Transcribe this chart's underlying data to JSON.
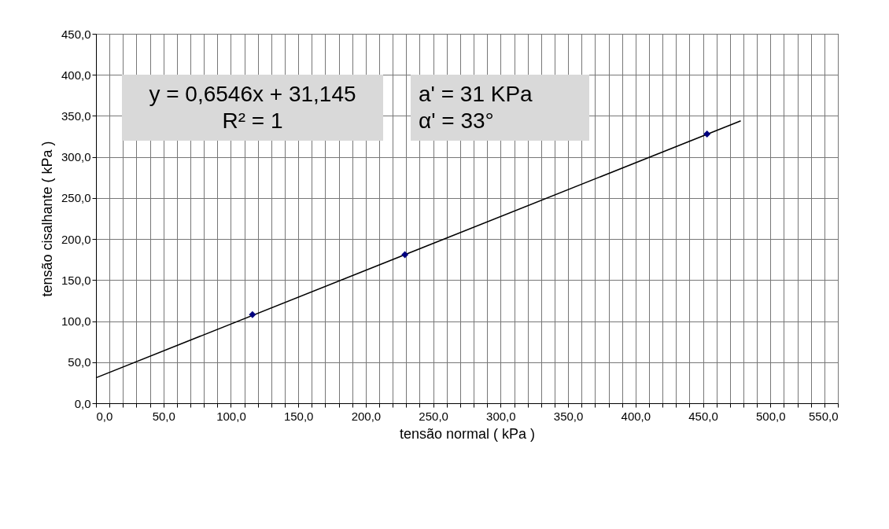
{
  "chart_data": {
    "type": "scatter",
    "xlabel": "tensão normal ( kPa )",
    "ylabel": "tensão cisalhante ( kPa )",
    "x": [
      116,
      229,
      453
    ],
    "series": [
      {
        "color": "#00007f",
        "marker": "diamond",
        "values": [
          108,
          181,
          328
        ]
      },
      {
        "type": "line",
        "color": "#000000",
        "x": [
          0,
          478
        ],
        "values": [
          31,
          344
        ]
      }
    ],
    "xlim": [
      0,
      550
    ],
    "ylim": [
      0,
      450
    ],
    "xticks": [
      {
        "value": 0,
        "label": "0,0"
      },
      {
        "value": 10,
        "label": null
      },
      {
        "value": 20,
        "label": null
      },
      {
        "value": 30,
        "label": null
      },
      {
        "value": 40,
        "label": null
      },
      {
        "value": 50,
        "label": "50,0"
      },
      {
        "value": 60,
        "label": null
      },
      {
        "value": 70,
        "label": null
      },
      {
        "value": 80,
        "label": null
      },
      {
        "value": 90,
        "label": null
      },
      {
        "value": 100,
        "label": "100,0"
      },
      {
        "value": 110,
        "label": null
      },
      {
        "value": 120,
        "label": null
      },
      {
        "value": 130,
        "label": null
      },
      {
        "value": 140,
        "label": null
      },
      {
        "value": 150,
        "label": "150,0"
      },
      {
        "value": 160,
        "label": null
      },
      {
        "value": 170,
        "label": null
      },
      {
        "value": 180,
        "label": null
      },
      {
        "value": 190,
        "label": null
      },
      {
        "value": 200,
        "label": "200,0"
      },
      {
        "value": 210,
        "label": null
      },
      {
        "value": 220,
        "label": null
      },
      {
        "value": 230,
        "label": null
      },
      {
        "value": 240,
        "label": null
      },
      {
        "value": 250,
        "label": "250,0"
      },
      {
        "value": 260,
        "label": null
      },
      {
        "value": 270,
        "label": null
      },
      {
        "value": 280,
        "label": null
      },
      {
        "value": 290,
        "label": null
      },
      {
        "value": 300,
        "label": "300,0"
      },
      {
        "value": 310,
        "label": null
      },
      {
        "value": 320,
        "label": null
      },
      {
        "value": 330,
        "label": null
      },
      {
        "value": 340,
        "label": null
      },
      {
        "value": 350,
        "label": "350,0"
      },
      {
        "value": 360,
        "label": null
      },
      {
        "value": 370,
        "label": null
      },
      {
        "value": 380,
        "label": null
      },
      {
        "value": 390,
        "label": null
      },
      {
        "value": 400,
        "label": "400,0"
      },
      {
        "value": 410,
        "label": null
      },
      {
        "value": 420,
        "label": null
      },
      {
        "value": 430,
        "label": null
      },
      {
        "value": 440,
        "label": null
      },
      {
        "value": 450,
        "label": "450,0"
      },
      {
        "value": 460,
        "label": null
      },
      {
        "value": 470,
        "label": null
      },
      {
        "value": 480,
        "label": null
      },
      {
        "value": 490,
        "label": null
      },
      {
        "value": 500,
        "label": "500,0"
      },
      {
        "value": 510,
        "label": null
      },
      {
        "value": 520,
        "label": null
      },
      {
        "value": 530,
        "label": null
      },
      {
        "value": 540,
        "label": null
      },
      {
        "value": 550,
        "label": "550,0"
      }
    ],
    "yticks": [
      {
        "value": 0,
        "label": "0,0"
      },
      {
        "value": 50,
        "label": "50,0"
      },
      {
        "value": 100,
        "label": "100,0"
      },
      {
        "value": 150,
        "label": "150,0"
      },
      {
        "value": 200,
        "label": "200,0"
      },
      {
        "value": 250,
        "label": "250,0"
      },
      {
        "value": 300,
        "label": "300,0"
      },
      {
        "value": 350,
        "label": "350,0"
      },
      {
        "value": 400,
        "label": "400,0"
      },
      {
        "value": 450,
        "label": "450,0"
      }
    ],
    "grid": true,
    "legend": false,
    "annotations": [
      "y = 0,6546x + 31,145\nR² = 1",
      "a' = 31 KPa\nα' = 33°"
    ]
  }
}
